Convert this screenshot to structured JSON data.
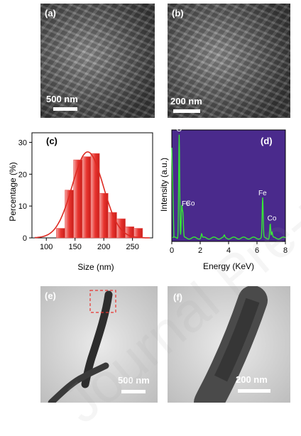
{
  "panels": {
    "a": {
      "label": "(a)",
      "scale": "500 nm"
    },
    "b": {
      "label": "(b)",
      "scale": "200 nm"
    },
    "c": {
      "label": "(c)"
    },
    "d": {
      "label": "(d)"
    },
    "e": {
      "label": "(e)",
      "scale": "500 nm"
    },
    "f": {
      "label": "(f)",
      "scale": "200 nm"
    }
  },
  "watermark": "Journal Pre-proof",
  "colors": {
    "bar": "#e8342f",
    "fit": "#dd2a22",
    "edx_bg": "#4a2a8c",
    "edx_line": "#37e637",
    "edx_text": "#ffffff"
  },
  "chart_data": [
    {
      "type": "bar",
      "panel": "(c)",
      "xlabel": "Size (nm)",
      "ylabel": "Percentage (%)",
      "xlim": [
        75,
        285
      ],
      "ylim": [
        0,
        33
      ],
      "xticks": [
        100,
        150,
        200,
        250
      ],
      "yticks": [
        0,
        10,
        20,
        30
      ],
      "bin_width": 15,
      "bins": [
        {
          "x": 125,
          "value": 3
        },
        {
          "x": 140,
          "value": 15
        },
        {
          "x": 155,
          "value": 24.5
        },
        {
          "x": 170,
          "value": 25.5
        },
        {
          "x": 185,
          "value": 26.5
        },
        {
          "x": 200,
          "value": 14
        },
        {
          "x": 215,
          "value": 8
        },
        {
          "x": 230,
          "value": 6
        },
        {
          "x": 245,
          "value": 3.5
        },
        {
          "x": 260,
          "value": 3
        }
      ],
      "fit": {
        "type": "gaussian",
        "mean": 172,
        "sigma": 27,
        "peak": 27
      }
    },
    {
      "type": "line",
      "panel": "(d)",
      "xlabel": "Energy (KeV)",
      "ylabel": "Intensity (a.u.)",
      "xlim": [
        0,
        8
      ],
      "xticks": [
        0,
        2,
        4,
        6,
        8
      ],
      "peaks": [
        {
          "energy": 0.52,
          "height": 1.0,
          "label": "O"
        },
        {
          "energy": 0.7,
          "height": 0.3,
          "label": "Fe"
        },
        {
          "energy": 0.78,
          "height": 0.22,
          "label": "Co"
        },
        {
          "energy": 6.4,
          "height": 0.38,
          "label": "Fe"
        },
        {
          "energy": 6.93,
          "height": 0.14,
          "label": "Co"
        },
        {
          "energy": 7.06,
          "height": 0.05,
          "label": ""
        },
        {
          "energy": 2.1,
          "height": 0.04,
          "label": ""
        },
        {
          "energy": 3.7,
          "height": 0.02,
          "label": ""
        }
      ]
    }
  ]
}
